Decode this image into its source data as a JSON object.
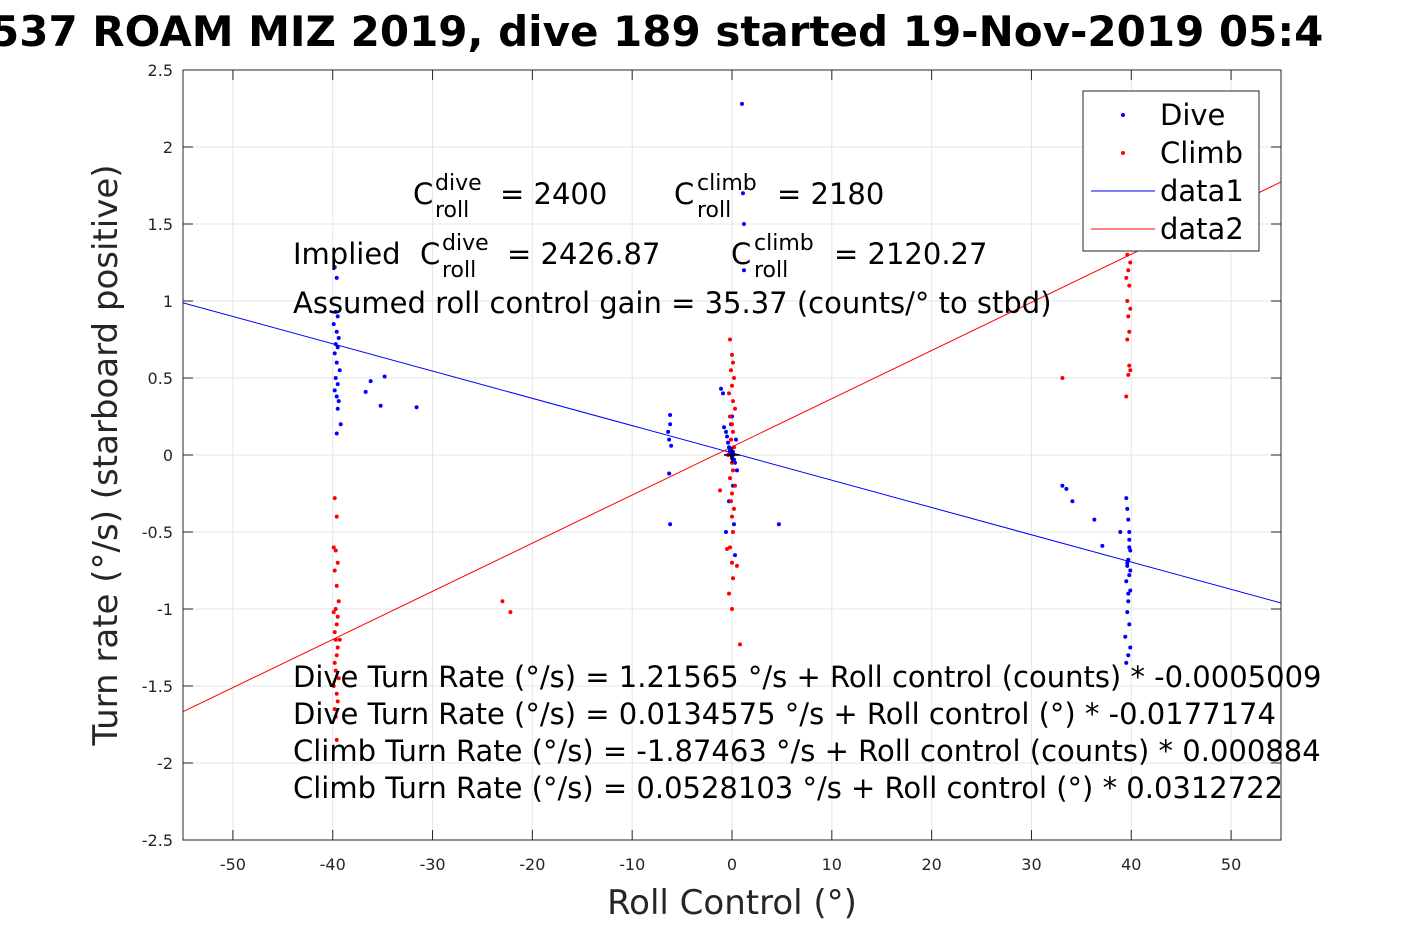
{
  "chart_data": {
    "type": "scatter",
    "title": "537 ROAM MIZ 2019, dive 189 started 19-Nov-2019 05:4",
    "xlabel": "Roll Control (°)",
    "ylabel": "Turn rate (°/s) (starboard positive)",
    "xlim": [
      -55,
      55
    ],
    "ylim": [
      -2.5,
      2.5
    ],
    "grid": true,
    "legend_position": "top-right",
    "x_ticks": [
      "-50",
      "-40",
      "-30",
      "-20",
      "-10",
      "0",
      "10",
      "20",
      "30",
      "40",
      "50"
    ],
    "y_ticks": [
      "2.5",
      "2",
      "1.5",
      "1",
      "0.5",
      "0",
      "-0.5",
      "-1",
      "-1.5",
      "-2",
      "-2.5"
    ],
    "legend": [
      "Dive",
      "Climb",
      "data1",
      "data2"
    ],
    "colors": {
      "dive": "#0000ff",
      "climb": "#ff0000"
    },
    "annotations": {
      "c_roll_label": "C",
      "roll_sub": "roll",
      "dive_sup": "dive",
      "climb_sup": "climb",
      "c_dive_value": "= 2400",
      "c_climb_value": "= 2180",
      "implied_prefix": "Implied ",
      "implied_dive_value": "= 2426.87",
      "implied_climb_value": "= 2120.27",
      "gain_line": "Assumed roll control gain = 35.37 (counts/° to stbd)",
      "eq_dive_counts": "Dive Turn Rate (°/s) = 1.21565 °/s + Roll control (counts) * -0.0005009",
      "eq_dive_deg": "Dive Turn Rate (°/s) = 0.0134575 °/s + Roll control (°) * -0.0177174",
      "eq_climb_counts": "Climb Turn Rate (°/s) = -1.87463 °/s + Roll control (counts) * 0.000884",
      "eq_climb_deg": "Climb Turn Rate (°/s) = 0.0528103 °/s + Roll control (°) * 0.0312722"
    },
    "series": [
      {
        "name": "Dive",
        "style": "points",
        "color": "#0000ff",
        "x": [
          -39.8,
          -39.6,
          -39.7,
          -39.5,
          -39.9,
          -39.6,
          -39.4,
          -39.7,
          -39.5,
          -39.8,
          -39.6,
          -39.3,
          -39.7,
          -39.5,
          -39.8,
          -39.6,
          -39.4,
          -39.5,
          -39.2,
          -39.6,
          -36.7,
          -36.2,
          -35.2,
          -34.8,
          -31.6,
          -6.2,
          -6.2,
          -6.4,
          -6.3,
          -6.1,
          -6.3,
          -6.2,
          -1.1,
          -0.9,
          -0.8,
          -0.6,
          -0.5,
          -0.4,
          -0.3,
          -0.2,
          -0.2,
          -0.1,
          0.0,
          0.0,
          0.1,
          0.1,
          0.2,
          0.3,
          0.4,
          0.5,
          -0.1,
          0.0,
          0.1,
          -0.3,
          0.2,
          1.0,
          1.1,
          1.2,
          1.2,
          4.7,
          -0.6,
          0.3,
          33.1,
          33.5,
          34.1,
          36.3,
          37.1,
          38.9,
          39.5,
          39.6,
          39.7,
          39.8,
          39.8,
          39.9,
          39.7,
          39.6,
          39.8,
          39.5,
          39.9,
          39.7,
          39.6,
          39.8,
          39.4,
          39.9,
          39.7,
          39.5,
          39.8,
          39.6,
          39.9,
          39.7
        ],
        "y": [
          1.22,
          1.15,
          0.93,
          0.9,
          0.85,
          0.8,
          0.76,
          0.72,
          0.7,
          0.66,
          0.6,
          0.55,
          0.5,
          0.46,
          0.42,
          0.38,
          0.35,
          0.3,
          0.2,
          0.14,
          0.41,
          0.48,
          0.32,
          0.51,
          0.31,
          0.26,
          0.2,
          0.15,
          0.1,
          0.06,
          -0.12,
          -0.45,
          0.43,
          0.4,
          0.18,
          0.15,
          0.12,
          0.08,
          0.05,
          0.03,
          0.01,
          0.0,
          -0.01,
          -0.02,
          0.02,
          0.0,
          -0.03,
          -0.05,
          0.1,
          -0.1,
          0.2,
          0.25,
          -0.2,
          -0.3,
          -0.45,
          2.28,
          1.7,
          1.5,
          1.2,
          -0.45,
          -0.5,
          -0.65,
          -0.2,
          -0.22,
          -0.3,
          -0.42,
          -0.59,
          -0.5,
          -0.28,
          -0.35,
          -0.42,
          -0.5,
          -0.55,
          -0.62,
          -0.68,
          -0.72,
          -0.78,
          -0.82,
          -0.88,
          -0.95,
          -1.02,
          -1.1,
          -1.18,
          -1.25,
          -1.3,
          -1.35,
          -0.6,
          -0.7,
          -0.75,
          -0.9
        ]
      },
      {
        "name": "Climb",
        "style": "points",
        "color": "#ff0000",
        "x": [
          -39.8,
          -39.6,
          -39.9,
          -39.7,
          -39.5,
          -39.8,
          -39.6,
          -39.4,
          -39.7,
          -39.9,
          -39.5,
          -39.6,
          -39.8,
          -39.7,
          -39.5,
          -39.6,
          -39.8,
          -39.3,
          -39.7,
          -39.4,
          -39.9,
          -39.6,
          -39.5,
          -39.8,
          -39.7,
          -39.6,
          -23.0,
          -22.2,
          -0.2,
          0.0,
          0.1,
          -0.1,
          0.2,
          0.0,
          -0.3,
          0.1,
          0.3,
          -0.2,
          0.0,
          0.1,
          -0.1,
          0.2,
          -0.4,
          0.0,
          0.1,
          -0.2,
          0.3,
          0.0,
          -0.1,
          0.2,
          0.0,
          0.1,
          -0.2,
          0.0,
          0.1,
          -0.3,
          0.0,
          -1.2,
          0.5,
          -0.5,
          0.8,
          33.1,
          39.8,
          39.6,
          39.9,
          39.7,
          39.5,
          39.8,
          39.6,
          39.9,
          39.7,
          39.8,
          39.6,
          39.9,
          39.7,
          39.5,
          39.8
        ],
        "y": [
          -0.28,
          -0.4,
          -0.6,
          -0.62,
          -0.7,
          -0.75,
          -0.85,
          -0.95,
          -1.0,
          -1.02,
          -1.05,
          -1.1,
          -1.15,
          -1.2,
          -1.25,
          -1.3,
          -1.35,
          -1.2,
          -1.4,
          -1.45,
          -1.5,
          -1.55,
          -1.6,
          -1.65,
          -1.7,
          -1.85,
          -0.95,
          -1.02,
          0.75,
          0.65,
          0.6,
          0.55,
          0.5,
          0.45,
          0.4,
          0.35,
          0.3,
          0.25,
          0.2,
          0.15,
          0.1,
          0.05,
          0.0,
          -0.05,
          -0.1,
          -0.15,
          -0.2,
          -0.25,
          -0.3,
          -0.35,
          -0.4,
          -0.5,
          -0.6,
          -0.7,
          -0.8,
          -0.9,
          -1.0,
          -0.23,
          -0.72,
          -0.61,
          -1.23,
          0.5,
          1.35,
          1.3,
          1.25,
          1.2,
          1.15,
          1.1,
          1.0,
          0.95,
          0.9,
          0.8,
          0.75,
          0.55,
          0.52,
          0.38,
          0.58
        ]
      },
      {
        "name": "data1",
        "style": "line",
        "color": "#0000ff",
        "x": [
          -55,
          55
        ],
        "y": [
          0.988,
          -0.961
        ]
      },
      {
        "name": "data2",
        "style": "line",
        "color": "#ff0000",
        "x": [
          -55,
          55
        ],
        "y": [
          -1.667,
          1.773
        ]
      }
    ]
  }
}
